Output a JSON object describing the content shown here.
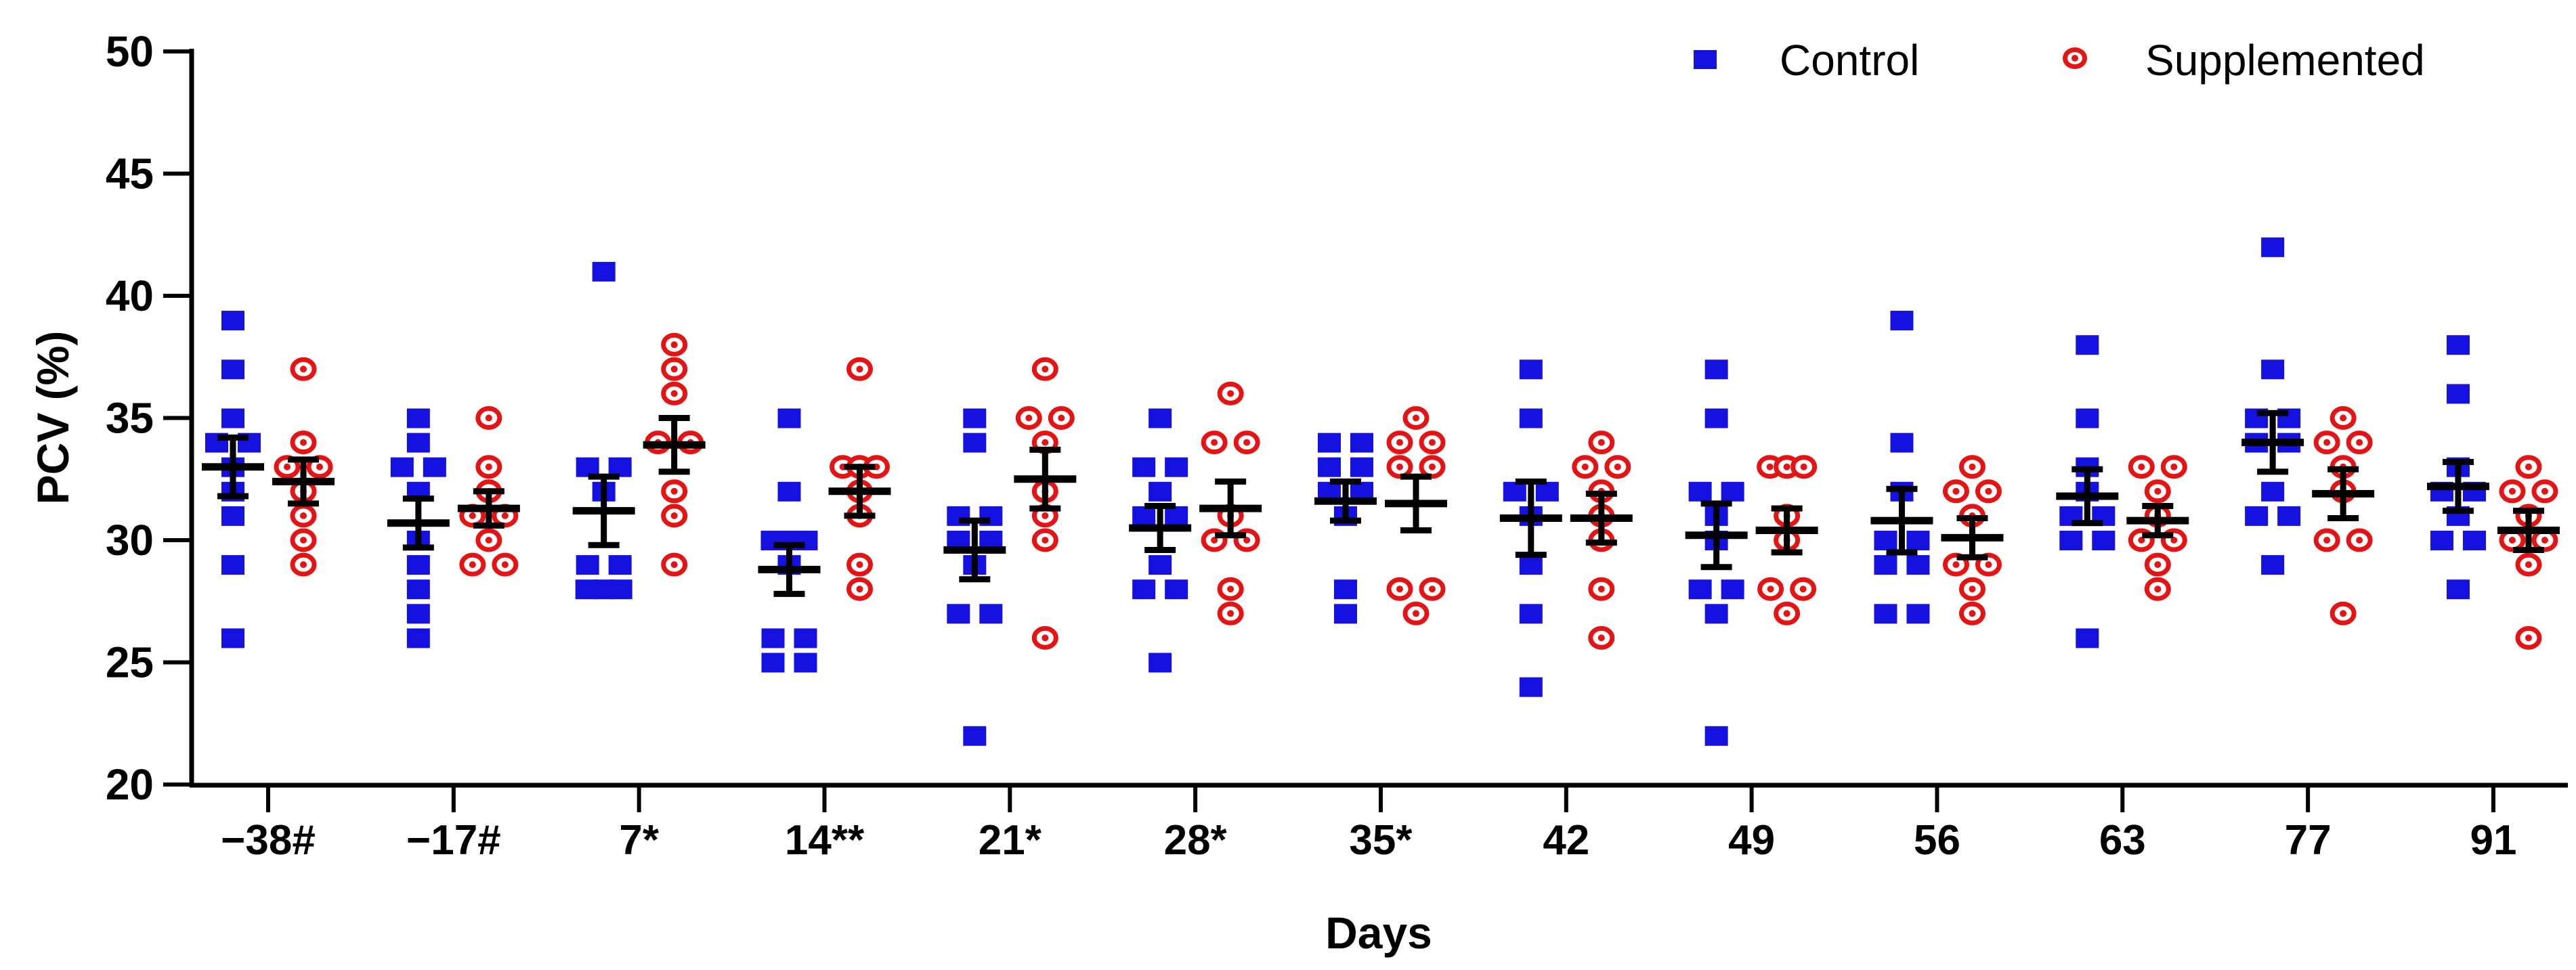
{
  "figure": {
    "background": "#ffffff"
  },
  "chart_data": {
    "type": "scatter",
    "title": "",
    "xlabel": "Days",
    "ylabel": "PCV (%)",
    "ylim": [
      20,
      50
    ],
    "yticks": [
      50,
      45,
      40,
      35,
      30,
      25,
      20
    ],
    "grid": false,
    "legend_position": "top-right",
    "categories": [
      "−38#",
      "−17#",
      "7*",
      "14**",
      "21*",
      "28*",
      "35*",
      "42",
      "49",
      "56",
      "63",
      "77",
      "91"
    ],
    "series": [
      {
        "name": "Control",
        "marker": "filled-square",
        "color": "#1511e0",
        "points_by_category": [
          [
            39,
            37,
            35,
            34,
            34,
            33,
            32,
            31,
            29,
            26
          ],
          [
            35,
            34,
            33,
            33,
            32,
            30,
            29,
            28,
            27,
            26
          ],
          [
            41,
            33,
            33,
            32,
            29,
            29,
            28,
            28,
            28
          ],
          [
            35,
            32,
            30,
            30,
            30,
            29,
            26,
            26,
            25,
            25
          ],
          [
            35,
            34,
            31,
            31,
            30,
            30,
            29,
            27,
            27,
            22
          ],
          [
            35,
            33,
            33,
            32,
            31,
            31,
            29,
            28,
            28,
            25
          ],
          [
            34,
            34,
            33,
            33,
            32,
            32,
            31,
            28,
            27
          ],
          [
            37,
            35,
            32,
            32,
            31,
            29,
            27,
            24
          ],
          [
            37,
            35,
            32,
            32,
            31,
            30,
            28,
            28,
            27,
            22
          ],
          [
            39,
            34,
            32,
            30,
            30,
            29,
            29,
            27,
            27
          ],
          [
            38,
            35,
            33,
            32,
            31,
            31,
            30,
            30,
            26
          ],
          [
            42,
            37,
            35,
            35,
            34,
            34,
            32,
            31,
            31,
            29
          ],
          [
            38,
            36,
            33,
            32,
            32,
            31,
            30,
            30,
            28
          ]
        ],
        "mean": [
          33.0,
          30.7,
          31.2,
          28.8,
          29.6,
          30.5,
          31.6,
          30.9,
          30.2,
          30.8,
          31.8,
          34.0,
          32.2
        ],
        "sem": [
          1.2,
          1.0,
          1.4,
          1.0,
          1.2,
          0.9,
          0.8,
          1.5,
          1.3,
          1.3,
          1.1,
          1.2,
          1.0
        ]
      },
      {
        "name": "Supplemented",
        "marker": "open-circle-dot",
        "color": "#e41414",
        "points_by_category": [
          [
            37,
            34,
            33,
            33,
            32,
            31,
            30,
            29
          ],
          [
            35,
            33,
            32,
            31,
            31,
            30,
            29,
            29
          ],
          [
            38,
            37,
            36,
            34,
            34,
            32,
            31,
            29
          ],
          [
            37,
            33,
            33,
            33,
            32,
            31,
            29,
            28
          ],
          [
            37,
            35,
            35,
            34,
            32,
            31,
            30,
            26
          ],
          [
            36,
            34,
            34,
            31,
            30,
            30,
            28,
            27
          ],
          [
            35,
            34,
            34,
            33,
            33,
            28,
            28,
            27
          ],
          [
            34,
            33,
            33,
            32,
            31,
            30,
            28,
            26
          ],
          [
            33,
            33,
            33,
            31,
            30,
            28,
            28,
            27
          ],
          [
            33,
            32,
            32,
            31,
            29,
            29,
            28,
            27
          ],
          [
            33,
            33,
            32,
            31,
            30,
            30,
            29,
            28
          ],
          [
            35,
            34,
            34,
            33,
            32,
            30,
            30,
            27
          ],
          [
            33,
            32,
            32,
            31,
            30,
            30,
            29,
            26
          ]
        ],
        "mean": [
          32.4,
          31.3,
          33.9,
          32.0,
          32.5,
          31.3,
          31.5,
          30.9,
          30.4,
          30.1,
          30.8,
          31.9,
          30.4
        ],
        "sem": [
          0.9,
          0.7,
          1.1,
          1.0,
          1.2,
          1.1,
          1.1,
          1.0,
          0.9,
          0.8,
          0.6,
          1.0,
          0.8
        ]
      }
    ],
    "errorbar_color": "#000000",
    "axis_color": "#000000"
  }
}
